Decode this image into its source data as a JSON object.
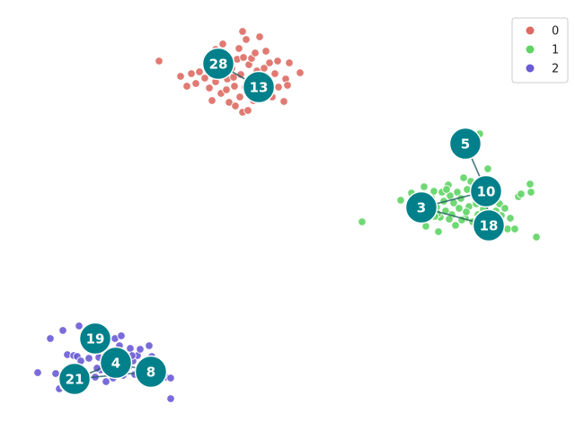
{
  "chart_data": {
    "type": "scatter",
    "title": "",
    "xlabel": "",
    "ylabel": "",
    "grid": false,
    "axes_visible": false,
    "xlim": [
      0,
      640
    ],
    "ylim": [
      480,
      0
    ],
    "legend": {
      "placement": "top-right",
      "entries": [
        {
          "label": "0",
          "color": "#dd6b63"
        },
        {
          "label": "1",
          "color": "#5fd465"
        },
        {
          "label": "2",
          "color": "#6a5bd6"
        }
      ]
    },
    "series": [
      {
        "name": "0",
        "color": "#dd6b63",
        "points": [
          [
            177,
            68
          ],
          [
            201,
            85
          ],
          [
            208,
            96
          ],
          [
            213,
            82
          ],
          [
            218,
            93
          ],
          [
            222,
            80
          ],
          [
            228,
            87
          ],
          [
            231,
            73
          ],
          [
            233,
            98
          ],
          [
            236,
            112
          ],
          [
            240,
            91
          ],
          [
            243,
            78
          ],
          [
            246,
            104
          ],
          [
            248,
            49
          ],
          [
            251,
            63
          ],
          [
            253,
            88
          ],
          [
            255,
            114
          ],
          [
            258,
            76
          ],
          [
            261,
            96
          ],
          [
            264,
            66
          ],
          [
            266,
            54
          ],
          [
            267,
            108
          ],
          [
            268,
            83
          ],
          [
            270,
            125
          ],
          [
            271,
            64
          ],
          [
            273,
            97
          ],
          [
            274,
            44
          ],
          [
            276,
            123
          ],
          [
            277,
            72
          ],
          [
            279,
            99
          ],
          [
            280,
            65
          ],
          [
            282,
            112
          ],
          [
            284,
            59
          ],
          [
            287,
            90
          ],
          [
            289,
            41
          ],
          [
            292,
            101
          ],
          [
            294,
            76
          ],
          [
            296,
            57
          ],
          [
            299,
            96
          ],
          [
            300,
            70
          ],
          [
            303,
            108
          ],
          [
            306,
            82
          ],
          [
            309,
            68
          ],
          [
            310,
            97
          ],
          [
            316,
            113
          ],
          [
            318,
            88
          ],
          [
            320,
            95
          ],
          [
            322,
            70
          ],
          [
            334,
            81
          ],
          [
            240,
            55
          ],
          [
            252,
            100
          ],
          [
            260,
            86
          ],
          [
            262,
            118
          ],
          [
            286,
            79
          ],
          [
            270,
            35
          ]
        ]
      },
      {
        "name": "1",
        "color": "#5fd465",
        "points": [
          [
            403,
            247
          ],
          [
            446,
            223
          ],
          [
            458,
            215
          ],
          [
            462,
            234
          ],
          [
            468,
            236
          ],
          [
            472,
            208
          ],
          [
            474,
            252
          ],
          [
            477,
            227
          ],
          [
            480,
            220
          ],
          [
            483,
            213
          ],
          [
            486,
            231
          ],
          [
            488,
            258
          ],
          [
            490,
            242
          ],
          [
            492,
            214
          ],
          [
            494,
            224
          ],
          [
            496,
            235
          ],
          [
            499,
            206
          ],
          [
            501,
            218
          ],
          [
            503,
            239
          ],
          [
            505,
            226
          ],
          [
            507,
            251
          ],
          [
            509,
            214
          ],
          [
            511,
            232
          ],
          [
            513,
            221
          ],
          [
            516,
            198
          ],
          [
            518,
            243
          ],
          [
            520,
            211
          ],
          [
            522,
            230
          ],
          [
            524,
            202
          ],
          [
            526,
            247
          ],
          [
            528,
            219
          ],
          [
            530,
            227
          ],
          [
            532,
            239
          ],
          [
            534,
            149
          ],
          [
            536,
            207
          ],
          [
            538,
            233
          ],
          [
            540,
            252
          ],
          [
            543,
            188
          ],
          [
            546,
            241
          ],
          [
            549,
            217
          ],
          [
            552,
            235
          ],
          [
            556,
            227
          ],
          [
            558,
            240
          ],
          [
            562,
            232
          ],
          [
            565,
            255
          ],
          [
            568,
            243
          ],
          [
            573,
            255
          ],
          [
            577,
            219
          ],
          [
            580,
            216
          ],
          [
            590,
            205
          ],
          [
            591,
            214
          ],
          [
            597,
            264
          ],
          [
            487,
            238
          ],
          [
            500,
            244
          ],
          [
            514,
            245
          ],
          [
            519,
            236
          ],
          [
            497,
            211
          ],
          [
            484,
            241
          ]
        ]
      },
      {
        "name": "2",
        "color": "#6a5bd6",
        "points": [
          [
            42,
            415
          ],
          [
            56,
            377
          ],
          [
            62,
            416
          ],
          [
            66,
            433
          ],
          [
            70,
            368
          ],
          [
            75,
            395
          ],
          [
            82,
            396
          ],
          [
            86,
            397
          ],
          [
            88,
            363
          ],
          [
            90,
            402
          ],
          [
            93,
            419
          ],
          [
            96,
            380
          ],
          [
            99,
            399
          ],
          [
            102,
            385
          ],
          [
            106,
            420
          ],
          [
            110,
            398
          ],
          [
            112,
            412
          ],
          [
            115,
            372
          ],
          [
            118,
            425
          ],
          [
            120,
            403
          ],
          [
            122,
            415
          ],
          [
            124,
            392
          ],
          [
            126,
            421
          ],
          [
            128,
            377
          ],
          [
            130,
            405
          ],
          [
            133,
            385
          ],
          [
            135,
            374
          ],
          [
            137,
            418
          ],
          [
            140,
            399
          ],
          [
            143,
            409
          ],
          [
            145,
            388
          ],
          [
            148,
            402
          ],
          [
            150,
            417
          ],
          [
            153,
            396
          ],
          [
            156,
            389
          ],
          [
            160,
            411
          ],
          [
            163,
            404
          ],
          [
            166,
            385
          ],
          [
            169,
            397
          ],
          [
            175,
            413
          ],
          [
            184,
            420
          ],
          [
            190,
            421
          ],
          [
            190,
            444
          ],
          [
            71,
            430
          ],
          [
            108,
            410
          ],
          [
            120,
            395
          ],
          [
            147,
            396
          ]
        ]
      }
    ],
    "hubs": [
      {
        "id": "28",
        "x": 243,
        "y": 71
      },
      {
        "id": "13",
        "x": 288,
        "y": 97
      },
      {
        "id": "5",
        "x": 518,
        "y": 160
      },
      {
        "id": "10",
        "x": 541,
        "y": 213
      },
      {
        "id": "3",
        "x": 469,
        "y": 231
      },
      {
        "id": "18",
        "x": 544,
        "y": 251
      },
      {
        "id": "19",
        "x": 106,
        "y": 377
      },
      {
        "id": "4",
        "x": 129,
        "y": 404
      },
      {
        "id": "8",
        "x": 168,
        "y": 414
      },
      {
        "id": "21",
        "x": 83,
        "y": 422
      }
    ],
    "hub_edges": [
      [
        "28",
        "13"
      ],
      [
        "5",
        "10"
      ],
      [
        "3",
        "10"
      ],
      [
        "3",
        "18"
      ],
      [
        "10",
        "18"
      ],
      [
        "19",
        "4"
      ],
      [
        "4",
        "8"
      ],
      [
        "4",
        "21"
      ],
      [
        "21",
        "8"
      ]
    ],
    "hub_color": "#00808a"
  }
}
